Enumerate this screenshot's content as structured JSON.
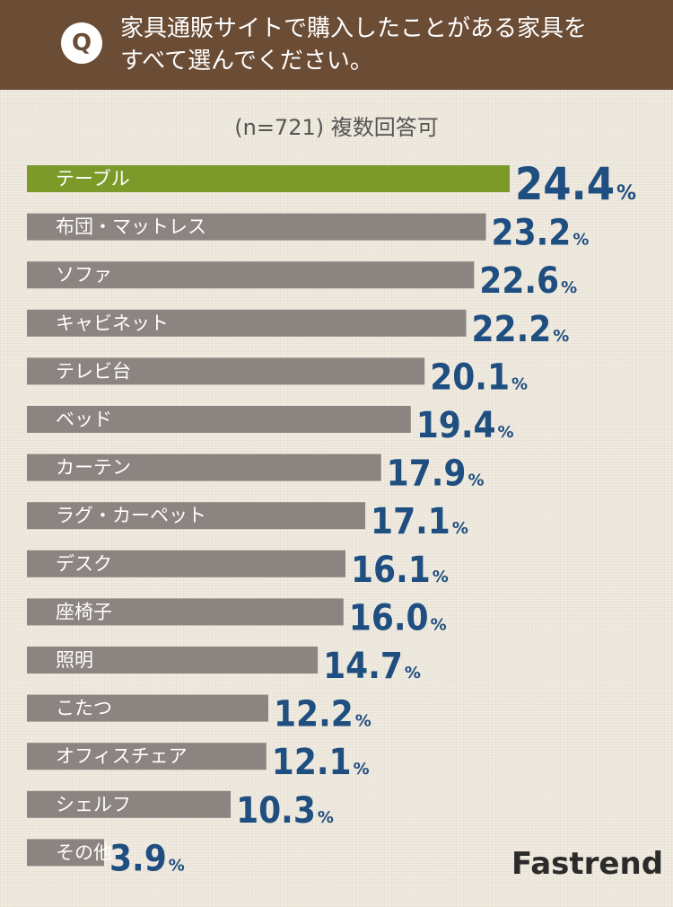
{
  "header": {
    "q_badge": "Q",
    "question_line1": "家具通販サイトで購入したことがある家具を",
    "question_line2": "すべて選んでください。"
  },
  "subtitle": "(n=721) 複数回答可",
  "brand": "Fastrend",
  "colors": {
    "header_bg": "#6b4c35",
    "highlight_bar": "#7b9a2a",
    "bar": "#8c8480",
    "value_text": "#1f4e80"
  },
  "chart_data": {
    "type": "bar",
    "orientation": "horizontal",
    "unit": "%",
    "categories": [
      "テーブル",
      "布団・マットレス",
      "ソファ",
      "キャビネット",
      "テレビ台",
      "ベッド",
      "カーテン",
      "ラグ・カーペット",
      "デスク",
      "座椅子",
      "照明",
      "こたつ",
      "オフィスチェア",
      "シェルフ",
      "その他"
    ],
    "values": [
      24.4,
      23.2,
      22.6,
      22.2,
      20.1,
      19.4,
      17.9,
      17.1,
      16.1,
      16.0,
      14.7,
      12.2,
      12.1,
      10.3,
      3.9
    ],
    "value_labels": [
      "24.4",
      "23.2",
      "22.6",
      "22.2",
      "20.1",
      "19.4",
      "17.9",
      "17.1",
      "16.1",
      "16.0",
      "14.7",
      "12.2",
      "12.1",
      "10.3",
      "3.9"
    ],
    "highlight_index": 0
  }
}
